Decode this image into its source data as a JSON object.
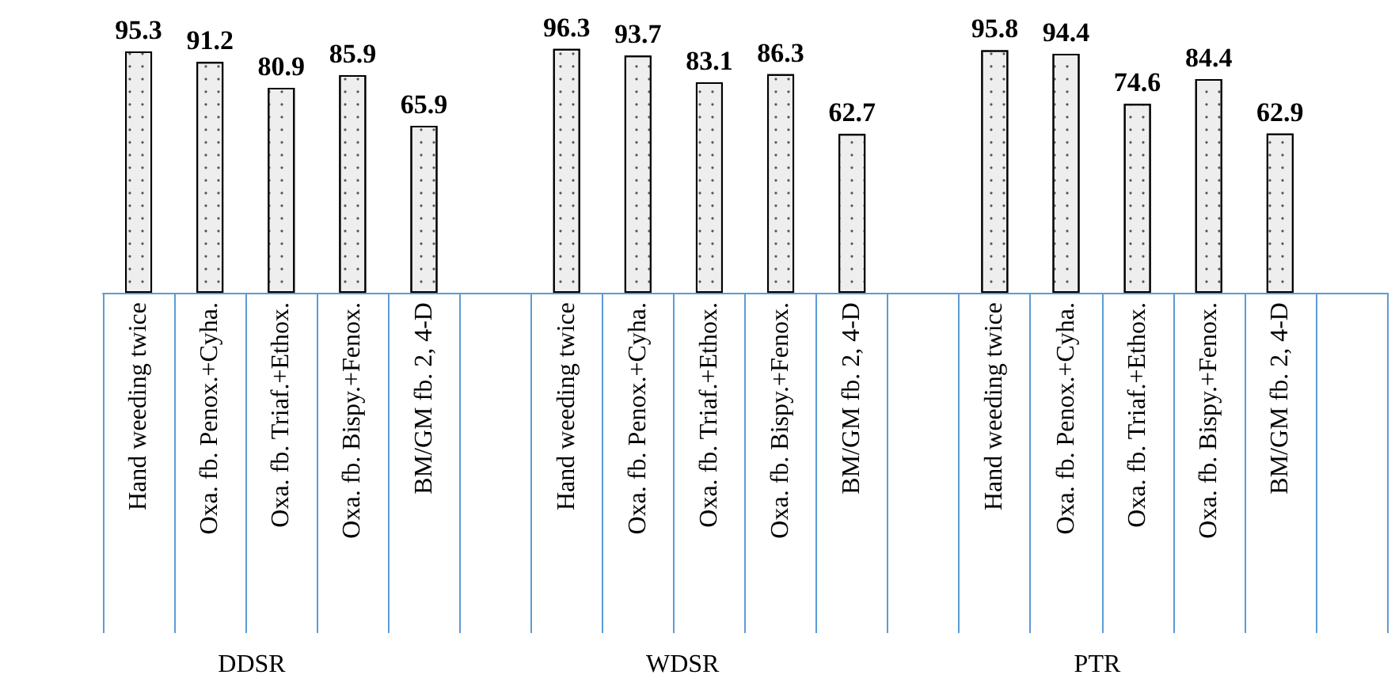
{
  "chart_data": {
    "type": "bar",
    "categories": [
      "Hand weeding twice",
      "Oxa. fb. Penox.+Cyha.",
      "Oxa. fb. Triaf.+Ethox.",
      "Oxa. fb. Bispy.+Fenox.",
      "BM/GM fb. 2, 4-D",
      null,
      "Hand weeding twice",
      "Oxa. fb. Penox.+Cyha.",
      "Oxa. fb. Triaf.+Ethox.",
      "Oxa. fb. Bispy.+Fenox.",
      "BM/GM fb. 2, 4-D",
      null,
      "Hand weeding twice",
      "Oxa. fb. Penox.+Cyha.",
      "Oxa. fb. Triaf.+Ethox.",
      "Oxa. fb. Bispy.+Fenox.",
      "BM/GM fb. 2, 4-D",
      null
    ],
    "values": [
      95.3,
      91.2,
      80.9,
      85.9,
      65.9,
      null,
      96.3,
      93.7,
      83.1,
      86.3,
      62.7,
      null,
      95.8,
      94.4,
      74.6,
      84.4,
      62.9,
      null
    ],
    "color": "#eeeeee",
    "data_labels": true,
    "annotations": [
      "DDSR",
      "WDSR",
      "PTR"
    ]
  }
}
